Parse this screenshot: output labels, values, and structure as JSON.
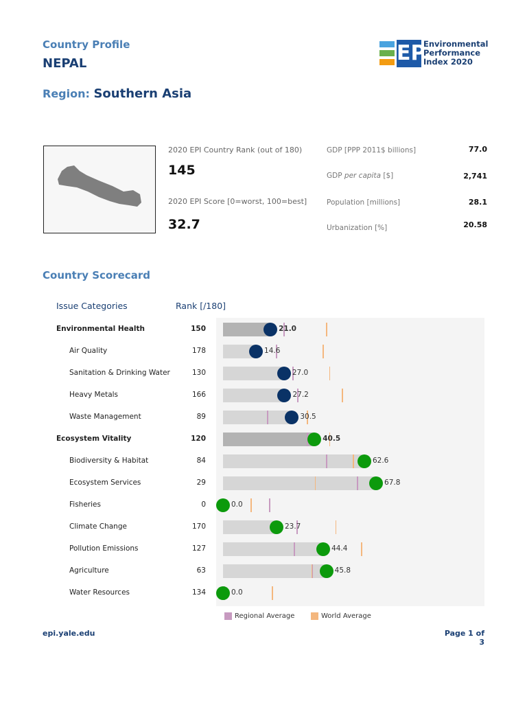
{
  "header": {
    "subtitle": "Country Profile",
    "country": "NEPAL",
    "region_label": "Region:",
    "region": "Southern Asia",
    "logo_text": [
      "Environmental",
      "Performance",
      "Index 2020"
    ],
    "logo_letters": "EPI"
  },
  "summary": {
    "rank_label": "2020 EPI Country Rank (out of 180)",
    "rank": "145",
    "score_label": "2020 EPI Score [0=worst, 100=best]",
    "score": "32.7",
    "stats": [
      {
        "label": "GDP [PPP 2011$ billions]",
        "value": "77.0"
      },
      {
        "label_pre": "GDP ",
        "label_em": "per capita",
        "label_post": " [$]",
        "value": "2,741"
      },
      {
        "label": "Population [millions]",
        "value": "28.1"
      },
      {
        "label": "Urbanization [%]",
        "value": "20.58"
      }
    ]
  },
  "scorecard": {
    "title": "Country Scorecard",
    "col_categories": "Issue Categories",
    "col_rank": "Rank [/180]"
  },
  "chart_data": {
    "type": "bar",
    "xlim": [
      0,
      100
    ],
    "colors": {
      "env_health": "#0a3266",
      "eco_vitality": "#0c9a0c",
      "regional": "#c79ac0",
      "world": "#f4b77e",
      "bar_main": "#b3b3b3",
      "bar_sub": "#d6d6d6"
    },
    "rows": [
      {
        "name": "Environmental Health",
        "rank": "150",
        "score": 21.0,
        "label": "21.0",
        "main": true,
        "group": "env_health",
        "regional": 27,
        "world": 46
      },
      {
        "name": "Air Quality",
        "rank": "178",
        "score": 14.6,
        "label": "14.6",
        "main": false,
        "group": "env_health",
        "regional": 23.7,
        "world": 44.4
      },
      {
        "name": "Sanitation & Drinking Water",
        "rank": "130",
        "score": 27.0,
        "label": "27.0",
        "main": false,
        "group": "env_health",
        "regional": 31,
        "world": 47.4
      },
      {
        "name": "Heavy Metals",
        "rank": "166",
        "score": 27.2,
        "label": "27.2",
        "main": false,
        "group": "env_health",
        "regional": 33,
        "world": 53
      },
      {
        "name": "Waste Management",
        "rank": "89",
        "score": 30.5,
        "label": "30.5",
        "main": false,
        "group": "env_health",
        "regional": 19.8,
        "world": 37.4
      },
      {
        "name": "Ecosystem Vitality",
        "rank": "120",
        "score": 40.5,
        "label": "40.5",
        "main": true,
        "group": "eco_vitality",
        "regional": 37.4,
        "world": 47.4
      },
      {
        "name": "Biodiversity & Habitat",
        "rank": "84",
        "score": 62.6,
        "label": "62.6",
        "main": false,
        "group": "eco_vitality",
        "regional": 46,
        "world": 57.8
      },
      {
        "name": "Ecosystem Services",
        "rank": "29",
        "score": 67.8,
        "label": "67.8",
        "main": false,
        "group": "eco_vitality",
        "regional": 59.6,
        "world": 41
      },
      {
        "name": "Fisheries",
        "rank": "0",
        "score": 0.0,
        "label": "0.0",
        "main": false,
        "group": "eco_vitality",
        "regional": 20.7,
        "world": 12.5
      },
      {
        "name": "Climate Change",
        "rank": "170",
        "score": 23.7,
        "label": "23.7",
        "main": false,
        "group": "eco_vitality",
        "regional": 32.8,
        "world": 50
      },
      {
        "name": "Pollution Emissions",
        "rank": "127",
        "score": 44.4,
        "label": "44.4",
        "main": false,
        "group": "eco_vitality",
        "regional": 31.6,
        "world": 61.4
      },
      {
        "name": "Agriculture",
        "rank": "63",
        "score": 45.8,
        "label": "45.8",
        "main": false,
        "group": "eco_vitality",
        "regional": 39.5,
        "world": 39.5
      },
      {
        "name": "Water Resources",
        "rank": "134",
        "score": 0.0,
        "label": "0.0",
        "main": false,
        "group": "eco_vitality",
        "regional": 0.5,
        "world": 22
      }
    ],
    "legend": [
      "Regional Average",
      "World Average"
    ]
  },
  "footer": {
    "url": "epi.yale.edu",
    "page": "Page 1 of 3"
  }
}
